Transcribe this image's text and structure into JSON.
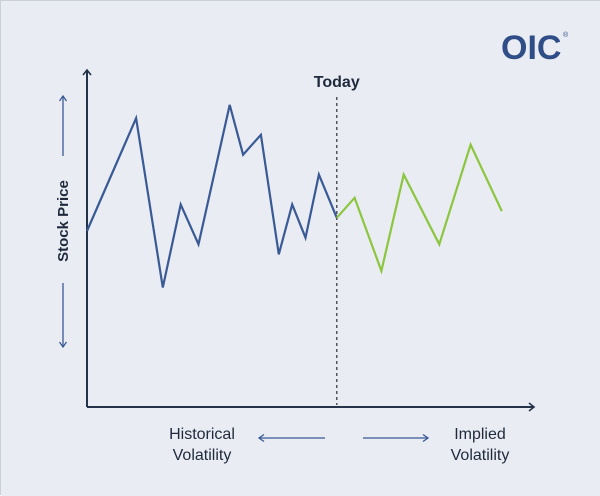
{
  "logo": {
    "text": "OIC",
    "mark": "®"
  },
  "labels": {
    "today": "Today",
    "y_axis": "Stock Price",
    "historical_line1": "Historical",
    "historical_line2": "Volatility",
    "implied_line1": "Implied",
    "implied_line2": "Volatility"
  },
  "colors": {
    "background": "#e9ecf2",
    "axis": "#24324a",
    "historical": "#3a5a95",
    "implied": "#8cc63f",
    "today_line": "#555555",
    "text": "#1f2a3d",
    "logo": "#2f4d86"
  },
  "chart_data": {
    "type": "line",
    "xlabel": "",
    "ylabel": "Stock Price",
    "series": [
      {
        "name": "Historical Volatility",
        "points": [
          [
            0,
            0.53
          ],
          [
            11,
            0.87
          ],
          [
            17,
            0.36
          ],
          [
            21,
            0.61
          ],
          [
            25,
            0.49
          ],
          [
            32,
            0.91
          ],
          [
            35,
            0.76
          ],
          [
            39,
            0.82
          ],
          [
            43,
            0.46
          ],
          [
            46,
            0.61
          ],
          [
            49,
            0.51
          ],
          [
            52,
            0.7
          ],
          [
            56,
            0.57
          ]
        ]
      },
      {
        "name": "Implied Volatility",
        "points": [
          [
            56,
            0.57
          ],
          [
            60,
            0.63
          ],
          [
            66,
            0.41
          ],
          [
            71,
            0.7
          ],
          [
            79,
            0.49
          ],
          [
            86,
            0.79
          ],
          [
            93,
            0.59
          ]
        ]
      }
    ],
    "today_x": 56,
    "xlim": [
      0,
      100
    ],
    "ylim": [
      0,
      1
    ],
    "grid": false
  }
}
